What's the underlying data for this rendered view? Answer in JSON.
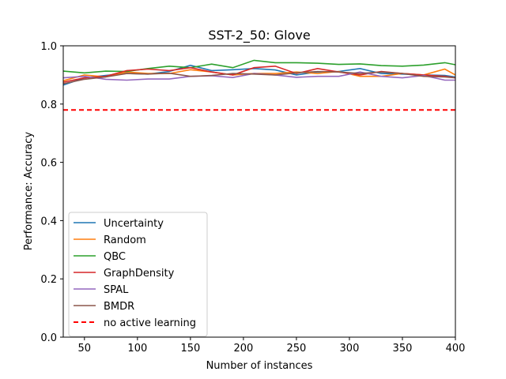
{
  "chart_data": {
    "type": "line",
    "title": "SST-2_50: Glove",
    "xlabel": "Number of instances",
    "ylabel": "Performance: Accuracy",
    "xlim": [
      30,
      400
    ],
    "ylim": [
      0.0,
      1.0
    ],
    "xticks": [
      "50",
      "100",
      "150",
      "200",
      "250",
      "300",
      "350",
      "400"
    ],
    "yticks": [
      "0.0",
      "0.2",
      "0.4",
      "0.6",
      "0.8",
      "1.0"
    ],
    "grid": false,
    "legend_position": "lower-left",
    "x": [
      30,
      50,
      70,
      90,
      110,
      130,
      150,
      170,
      190,
      210,
      230,
      250,
      270,
      290,
      310,
      330,
      350,
      370,
      390,
      400
    ],
    "series": [
      {
        "name": "Uncertainty",
        "color": "#1f77b4",
        "style": "solid",
        "values": [
          0.865,
          0.89,
          0.898,
          0.905,
          0.903,
          0.912,
          0.933,
          0.915,
          0.918,
          0.922,
          0.917,
          0.9,
          0.91,
          0.912,
          0.922,
          0.905,
          0.903,
          0.9,
          0.898,
          0.893
        ]
      },
      {
        "name": "Random",
        "color": "#ff7f0e",
        "style": "solid",
        "values": [
          0.88,
          0.9,
          0.893,
          0.91,
          0.905,
          0.905,
          0.918,
          0.91,
          0.9,
          0.905,
          0.905,
          0.91,
          0.905,
          0.912,
          0.895,
          0.895,
          0.905,
          0.9,
          0.92,
          0.9
        ]
      },
      {
        "name": "QBC",
        "color": "#2ca02c",
        "style": "solid",
        "values": [
          0.913,
          0.907,
          0.913,
          0.912,
          0.922,
          0.93,
          0.925,
          0.937,
          0.925,
          0.95,
          0.942,
          0.942,
          0.94,
          0.936,
          0.938,
          0.932,
          0.93,
          0.934,
          0.942,
          0.935
        ]
      },
      {
        "name": "GraphDensity",
        "color": "#d62728",
        "style": "solid",
        "values": [
          0.875,
          0.89,
          0.895,
          0.915,
          0.92,
          0.915,
          0.925,
          0.91,
          0.9,
          0.925,
          0.93,
          0.905,
          0.922,
          0.91,
          0.9,
          0.912,
          0.905,
          0.9,
          0.895,
          0.89
        ]
      },
      {
        "name": "SPAL",
        "color": "#9467bd",
        "style": "solid",
        "values": [
          0.89,
          0.895,
          0.885,
          0.882,
          0.886,
          0.886,
          0.895,
          0.897,
          0.891,
          0.905,
          0.9,
          0.892,
          0.895,
          0.895,
          0.91,
          0.895,
          0.89,
          0.898,
          0.882,
          0.882
        ]
      },
      {
        "name": "BMDR",
        "color": "#8c564b",
        "style": "solid",
        "values": [
          0.87,
          0.885,
          0.893,
          0.905,
          0.903,
          0.906,
          0.895,
          0.898,
          0.905,
          0.903,
          0.9,
          0.907,
          0.912,
          0.91,
          0.905,
          0.91,
          0.905,
          0.895,
          0.893,
          0.89
        ]
      },
      {
        "name": "no active learning",
        "color": "#ff0000",
        "style": "dashed",
        "values": [
          0.78,
          0.78,
          0.78,
          0.78,
          0.78,
          0.78,
          0.78,
          0.78,
          0.78,
          0.78,
          0.78,
          0.78,
          0.78,
          0.78,
          0.78,
          0.78,
          0.78,
          0.78,
          0.78,
          0.78
        ]
      }
    ]
  }
}
